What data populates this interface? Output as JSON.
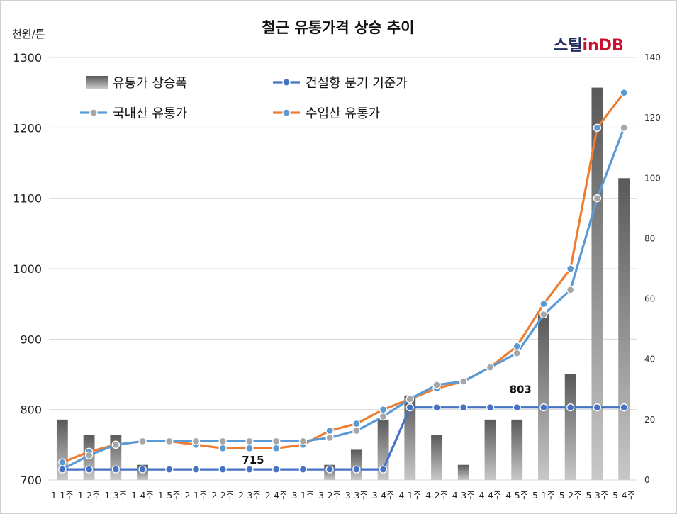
{
  "chart_data": {
    "type": "line",
    "title": "철근 유통가격 상승 추이",
    "unit_label": "천원/톤",
    "logo": {
      "part1": "스틸",
      "part2": "in",
      "part3": "DB"
    },
    "categories": [
      "1-1주",
      "1-2주",
      "1-3주",
      "1-4주",
      "1-5주",
      "2-1주",
      "2-2주",
      "2-3주",
      "2-4주",
      "3-1주",
      "3-2주",
      "3-3주",
      "3-4주",
      "4-1주",
      "4-2주",
      "4-3주",
      "4-4주",
      "4-5주",
      "5-1주",
      "5-2주",
      "5-3주",
      "5-4주"
    ],
    "y_ticks": [
      "1300",
      "1200",
      "1100",
      "1000",
      "900",
      "800",
      "700"
    ],
    "y2_ticks": [
      "140",
      "120",
      "100",
      "80",
      "60",
      "40",
      "20",
      "0"
    ],
    "ylim": [
      700,
      1300
    ],
    "y2lim": [
      0,
      140
    ],
    "grid": true,
    "legend_position": "top-left",
    "series": [
      {
        "name": "유통가 상승폭",
        "axis": "secondary",
        "kind": "bar",
        "color": "#7f7f7f",
        "values": [
          20,
          15,
          15,
          5,
          0,
          0,
          0,
          0,
          0,
          0,
          5,
          10,
          20,
          28,
          15,
          5,
          20,
          20,
          55,
          35,
          130,
          100
        ]
      },
      {
        "name": "건설향 분기 기준가",
        "axis": "primary",
        "kind": "line",
        "color": "#4472c4",
        "values": [
          715,
          715,
          715,
          715,
          715,
          715,
          715,
          715,
          715,
          715,
          715,
          715,
          715,
          803,
          803,
          803,
          803,
          803,
          803,
          803,
          803,
          803
        ]
      },
      {
        "name": "국내산 유통가",
        "axis": "primary",
        "kind": "line",
        "color": "#5b9bd5",
        "values": [
          715,
          735,
          750,
          755,
          755,
          755,
          755,
          755,
          755,
          755,
          760,
          770,
          790,
          815,
          835,
          840,
          860,
          880,
          935,
          970,
          1100,
          1200
        ]
      },
      {
        "name": "수입산 유통가",
        "axis": "primary",
        "kind": "line",
        "color": "#ed7d31",
        "values": [
          725,
          740,
          750,
          755,
          755,
          750,
          745,
          745,
          745,
          750,
          770,
          780,
          800,
          815,
          830,
          840,
          860,
          890,
          950,
          1000,
          1200,
          1250
        ]
      }
    ],
    "annotations": [
      {
        "text": "715",
        "x_index": 7,
        "y": 715
      },
      {
        "text": "803",
        "x_index": 17,
        "y": 803
      }
    ]
  }
}
